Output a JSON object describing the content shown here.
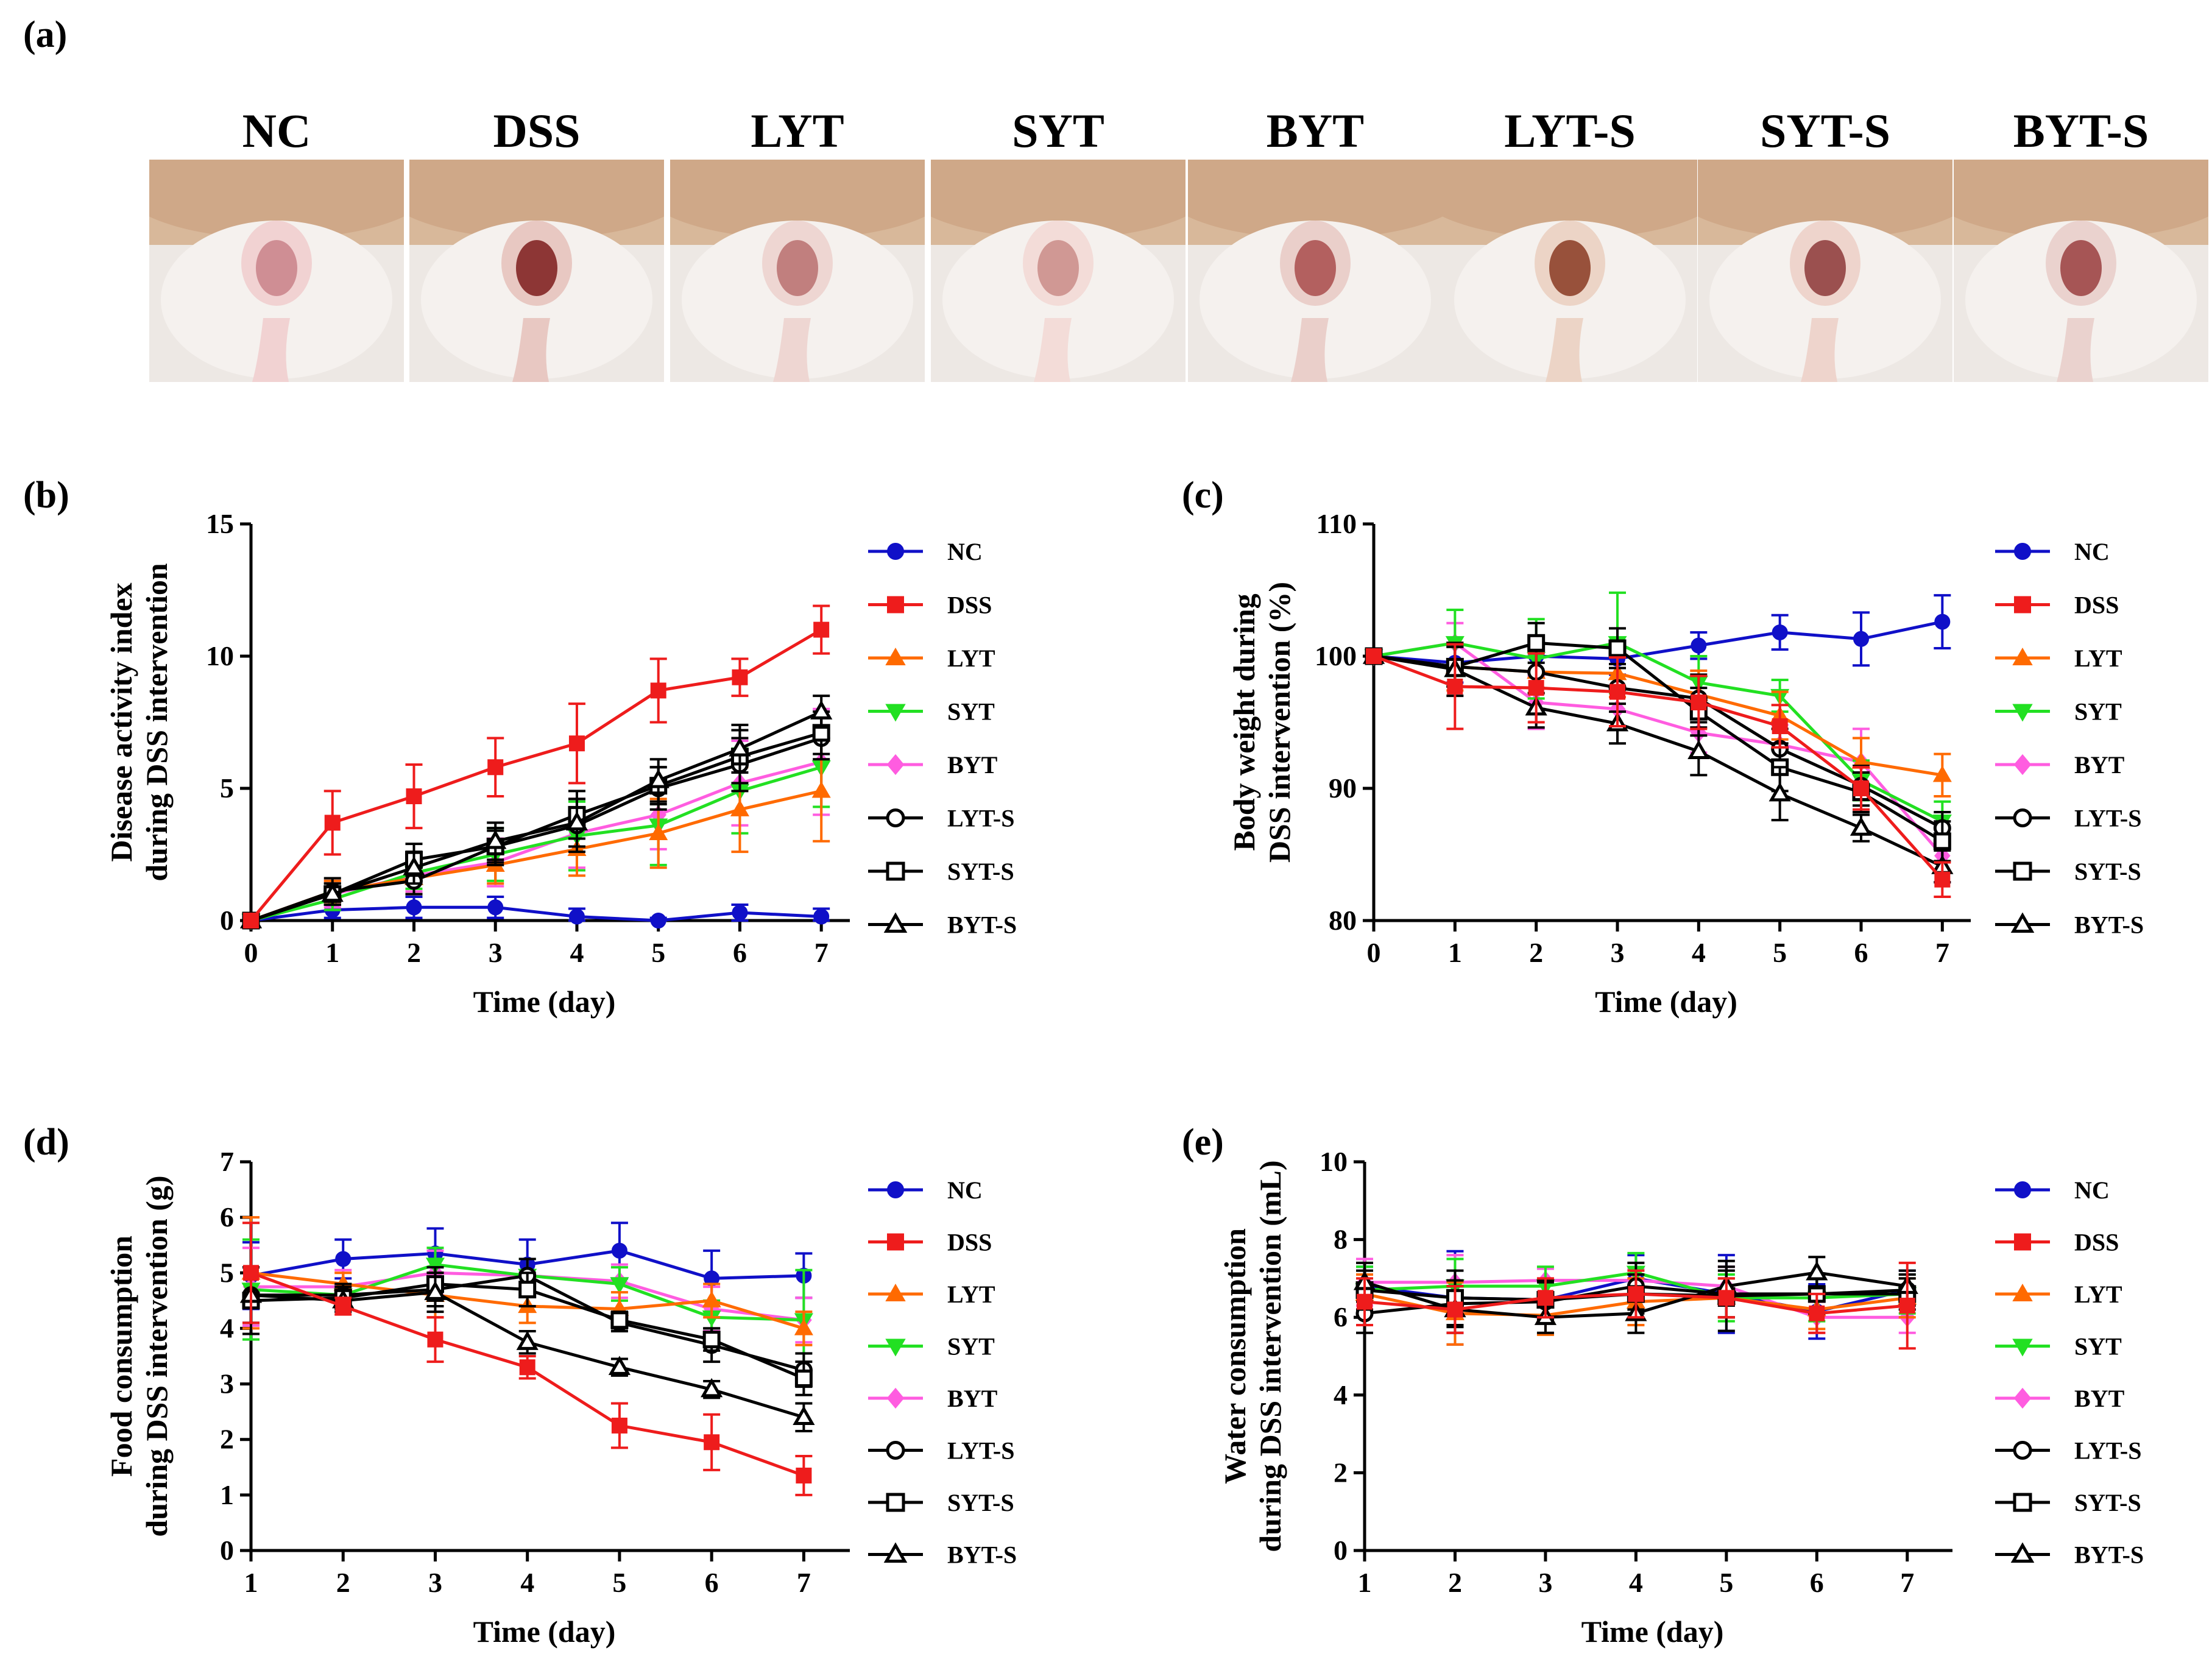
{
  "panels": {
    "a": "(a)",
    "b": "(b)",
    "c": "(c)",
    "d": "(d)",
    "e": "(e)"
  },
  "photos": [
    {
      "label": "NC",
      "tone": "#f1d2d2",
      "lesion": "#c9828a"
    },
    {
      "label": "DSS",
      "tone": "#e8c8c2",
      "lesion": "#7c1c1c"
    },
    {
      "label": "LYT",
      "tone": "#eed6d2",
      "lesion": "#b87070"
    },
    {
      "label": "SYT",
      "tone": "#f3dcd8",
      "lesion": "#c98c88"
    },
    {
      "label": "BYT",
      "tone": "#eacfca",
      "lesion": "#a94c4c"
    },
    {
      "label": "LYT-S",
      "tone": "#ecd4c6",
      "lesion": "#8a3a22"
    },
    {
      "label": "SYT-S",
      "tone": "#eed4cc",
      "lesion": "#8c3838"
    },
    {
      "label": "BYT-S",
      "tone": "#ead2ce",
      "lesion": "#9a4040"
    }
  ],
  "legend": [
    {
      "name": "NC",
      "color": "#1010c8",
      "marker": "circle",
      "filled": true
    },
    {
      "name": "DSS",
      "color": "#ee1c1c",
      "marker": "square",
      "filled": true
    },
    {
      "name": "LYT",
      "color": "#ff6a00",
      "marker": "triangle",
      "filled": true
    },
    {
      "name": "SYT",
      "color": "#22e022",
      "marker": "triangle-down",
      "filled": true
    },
    {
      "name": "BYT",
      "color": "#ff5ce0",
      "marker": "diamond",
      "filled": true
    },
    {
      "name": "LYT-S",
      "color": "#000000",
      "marker": "circle",
      "filled": false
    },
    {
      "name": "SYT-S",
      "color": "#000000",
      "marker": "square",
      "filled": false
    },
    {
      "name": "BYT-S",
      "color": "#000000",
      "marker": "triangle",
      "filled": false
    }
  ],
  "chart_data": [
    {
      "id": "b",
      "type": "line",
      "title": "",
      "xlabel": "Time (day)",
      "ylabel": [
        "Disease activity index",
        "during DSS intervention"
      ],
      "x": [
        0,
        1,
        2,
        3,
        4,
        5,
        6,
        7
      ],
      "xticks": [
        "0",
        "1",
        "2",
        "3",
        "4",
        "5",
        "6",
        "7"
      ],
      "xlim": [
        0,
        7.35
      ],
      "ylim": [
        0,
        15
      ],
      "yticks": [
        "0",
        "5",
        "10",
        "15"
      ],
      "ytick_values": [
        0,
        5,
        10,
        15
      ],
      "series": [
        {
          "name": "NC",
          "values": [
            0,
            0.4,
            0.5,
            0.5,
            0.15,
            0,
            0.3,
            0.15
          ],
          "err": [
            0,
            0.3,
            0.4,
            0.4,
            0.3,
            0.1,
            0.3,
            0.3
          ]
        },
        {
          "name": "DSS",
          "values": [
            0,
            3.7,
            4.7,
            5.8,
            6.7,
            8.7,
            9.2,
            11.0
          ],
          "err": [
            0,
            1.2,
            1.2,
            1.1,
            1.5,
            1.2,
            0.7,
            0.9
          ]
        },
        {
          "name": "LYT",
          "values": [
            0,
            1.1,
            1.6,
            2.1,
            2.7,
            3.3,
            4.2,
            4.9
          ],
          "err": [
            0,
            0.4,
            0.6,
            0.7,
            1.0,
            1.3,
            1.6,
            1.9
          ]
        },
        {
          "name": "SYT",
          "values": [
            0,
            0.8,
            1.8,
            2.5,
            3.2,
            3.6,
            4.9,
            5.8
          ],
          "err": [
            0,
            0.4,
            0.6,
            1.0,
            1.3,
            1.5,
            1.6,
            1.5
          ]
        },
        {
          "name": "BYT",
          "values": [
            0,
            1.0,
            1.7,
            2.2,
            3.3,
            4.0,
            5.2,
            6.0
          ],
          "err": [
            0,
            0.5,
            0.6,
            0.9,
            1.3,
            1.3,
            1.6,
            2.0
          ]
        },
        {
          "name": "LYT-S",
          "values": [
            0,
            1.1,
            1.5,
            2.8,
            3.6,
            5.0,
            5.9,
            6.9
          ],
          "err": [
            0,
            0.5,
            0.5,
            0.6,
            1.0,
            0.8,
            1.0,
            0.8
          ]
        },
        {
          "name": "SYT-S",
          "values": [
            0,
            1.0,
            2.3,
            2.8,
            4.0,
            5.1,
            6.2,
            7.1
          ],
          "err": [
            0,
            0.4,
            0.6,
            0.7,
            0.9,
            0.7,
            1.0,
            0.8
          ]
        },
        {
          "name": "BYT-S",
          "values": [
            0,
            1.0,
            2.0,
            3.0,
            3.7,
            5.3,
            6.5,
            7.9
          ],
          "err": [
            0,
            0.4,
            0.6,
            0.7,
            0.9,
            0.8,
            0.9,
            0.6
          ]
        }
      ]
    },
    {
      "id": "c",
      "type": "line",
      "title": "",
      "xlabel": "Time (day)",
      "ylabel": [
        "Body weight during",
        "DSS intervention (%)"
      ],
      "x": [
        0,
        1,
        2,
        3,
        4,
        5,
        6,
        7
      ],
      "xticks": [
        "0",
        "1",
        "2",
        "3",
        "4",
        "5",
        "6",
        "7"
      ],
      "xlim": [
        0,
        7.35
      ],
      "ylim": [
        80,
        110
      ],
      "yticks": [
        "80",
        "90",
        "100",
        "110"
      ],
      "ytick_values": [
        80,
        90,
        100,
        110
      ],
      "series": [
        {
          "name": "NC",
          "values": [
            100,
            99.5,
            100.0,
            99.8,
            100.8,
            101.8,
            101.3,
            102.6
          ],
          "err": [
            0,
            1.5,
            1.5,
            1.2,
            1.0,
            1.3,
            2.0,
            2.0
          ]
        },
        {
          "name": "DSS",
          "values": [
            100,
            97.7,
            97.6,
            97.3,
            96.5,
            94.7,
            90.0,
            83.1
          ],
          "err": [
            0,
            3.2,
            2.6,
            2.6,
            2.0,
            1.6,
            1.6,
            1.3
          ]
        },
        {
          "name": "LYT",
          "values": [
            100,
            99.2,
            98.8,
            98.7,
            97.1,
            95.5,
            92.0,
            91.0
          ],
          "err": [
            0,
            1.8,
            1.6,
            1.8,
            1.8,
            1.8,
            1.8,
            1.6
          ]
        },
        {
          "name": "SYT",
          "values": [
            100,
            101.0,
            99.8,
            101.0,
            98.0,
            97.0,
            90.6,
            87.5
          ],
          "err": [
            0,
            2.5,
            3.0,
            3.8,
            2.0,
            1.2,
            1.5,
            1.5
          ]
        },
        {
          "name": "BYT",
          "values": [
            100,
            101.0,
            96.5,
            96.0,
            94.2,
            93.3,
            92.0,
            84.9
          ],
          "err": [
            0,
            1.5,
            2.0,
            1.5,
            1.5,
            1.5,
            2.5,
            2.0
          ]
        },
        {
          "name": "LYT-S",
          "values": [
            100,
            99.2,
            98.8,
            97.6,
            96.8,
            93.0,
            90.2,
            87.0
          ],
          "err": [
            0,
            1.5,
            1.6,
            1.8,
            1.8,
            1.5,
            1.5,
            1.2
          ]
        },
        {
          "name": "SYT-S",
          "values": [
            100,
            99.2,
            101.0,
            100.6,
            95.8,
            91.6,
            89.7,
            86.0
          ],
          "err": [
            0,
            1.5,
            1.5,
            1.5,
            1.8,
            1.8,
            1.5,
            1.5
          ]
        },
        {
          "name": "BYT-S",
          "values": [
            100,
            99.0,
            96.1,
            94.9,
            92.8,
            89.6,
            87.0,
            84.1
          ],
          "err": [
            0,
            2.0,
            1.5,
            1.5,
            1.8,
            2.0,
            1.0,
            1.2
          ]
        }
      ]
    },
    {
      "id": "d",
      "type": "line",
      "title": "",
      "xlabel": "Time (day)",
      "ylabel": [
        "Food consumption",
        "during DSS intervention (g)"
      ],
      "x": [
        1,
        2,
        3,
        4,
        5,
        6,
        7
      ],
      "xticks": [
        "1",
        "2",
        "3",
        "4",
        "5",
        "6",
        "7"
      ],
      "xlim": [
        1,
        7.5
      ],
      "ylim": [
        0,
        7
      ],
      "yticks": [
        "0",
        "1",
        "2",
        "3",
        "4",
        "5",
        "6",
        "7"
      ],
      "ytick_values": [
        0,
        1,
        2,
        3,
        4,
        5,
        6,
        7
      ],
      "series": [
        {
          "name": "NC",
          "values": [
            4.95,
            5.25,
            5.35,
            5.15,
            5.4,
            4.9,
            4.95
          ],
          "err": [
            0.6,
            0.35,
            0.45,
            0.45,
            0.5,
            0.5,
            0.4
          ]
        },
        {
          "name": "DSS",
          "values": [
            5.0,
            4.4,
            3.8,
            3.3,
            2.25,
            1.95,
            1.35
          ],
          "err": [
            0.9,
            0.15,
            0.4,
            0.2,
            0.4,
            0.5,
            0.35
          ]
        },
        {
          "name": "LYT",
          "values": [
            5.0,
            4.8,
            4.6,
            4.4,
            4.35,
            4.5,
            4.0
          ],
          "err": [
            1.0,
            0.2,
            0.4,
            0.3,
            0.3,
            0.3,
            0.3
          ]
        },
        {
          "name": "SYT",
          "values": [
            4.7,
            4.6,
            5.15,
            4.95,
            4.8,
            4.2,
            4.15
          ],
          "err": [
            0.9,
            0.2,
            0.3,
            0.3,
            0.3,
            0.3,
            0.9
          ]
        },
        {
          "name": "BYT",
          "values": [
            4.75,
            4.75,
            5.0,
            4.95,
            4.85,
            4.35,
            4.15
          ],
          "err": [
            0.7,
            0.3,
            0.4,
            0.3,
            0.3,
            0.4,
            0.4
          ]
        },
        {
          "name": "LYT-S",
          "values": [
            4.6,
            4.6,
            4.7,
            4.95,
            4.1,
            3.7,
            3.25
          ],
          "err": [
            0.5,
            0.2,
            0.3,
            0.3,
            0.15,
            0.3,
            0.3
          ]
        },
        {
          "name": "SYT-S",
          "values": [
            4.5,
            4.55,
            4.8,
            4.7,
            4.15,
            3.8,
            3.1
          ],
          "err": [
            0.6,
            0.2,
            0.3,
            0.3,
            0.15,
            0.2,
            0.3
          ]
        },
        {
          "name": "BYT-S",
          "values": [
            4.6,
            4.5,
            4.65,
            3.75,
            3.3,
            2.9,
            2.4
          ],
          "err": [
            0.5,
            0.2,
            0.35,
            0.2,
            0.15,
            0.15,
            0.25
          ]
        }
      ]
    },
    {
      "id": "e",
      "type": "line",
      "title": "",
      "xlabel": "Time (day)",
      "ylabel": [
        "Water consumption",
        "during DSS intervention (mL)"
      ],
      "x": [
        1,
        2,
        3,
        4,
        5,
        6,
        7
      ],
      "xticks": [
        "1",
        "2",
        "3",
        "4",
        "5",
        "6",
        "7"
      ],
      "xlim": [
        1,
        7.5
      ],
      "ylim": [
        0,
        10
      ],
      "yticks": [
        "0",
        "2",
        "4",
        "6",
        "8",
        "10"
      ],
      "ytick_values": [
        0,
        2,
        4,
        6,
        8,
        10
      ],
      "series": [
        {
          "name": "NC",
          "values": [
            6.8,
            6.5,
            6.45,
            7.0,
            6.6,
            6.15,
            6.7
          ],
          "err": [
            0.5,
            1.2,
            0.5,
            0.6,
            1.0,
            0.7,
            0.5
          ]
        },
        {
          "name": "DSS",
          "values": [
            6.4,
            6.2,
            6.5,
            6.6,
            6.5,
            6.1,
            6.3
          ],
          "err": [
            0.6,
            0.6,
            0.5,
            0.6,
            0.5,
            0.5,
            1.1
          ]
        },
        {
          "name": "LYT",
          "values": [
            6.6,
            6.1,
            6.05,
            6.4,
            6.5,
            6.2,
            6.5
          ],
          "err": [
            0.5,
            0.8,
            0.5,
            0.6,
            0.5,
            0.5,
            0.5
          ]
        },
        {
          "name": "SYT",
          "values": [
            6.7,
            6.8,
            6.8,
            7.15,
            6.5,
            6.5,
            6.6
          ],
          "err": [
            0.6,
            0.7,
            0.5,
            0.5,
            0.6,
            0.6,
            0.5
          ]
        },
        {
          "name": "BYT",
          "values": [
            6.9,
            6.9,
            6.95,
            6.95,
            6.8,
            6.0,
            6.0
          ],
          "err": [
            0.6,
            0.7,
            0.3,
            0.3,
            0.5,
            0.4,
            0.4
          ]
        },
        {
          "name": "LYT-S",
          "values": [
            6.1,
            6.35,
            6.4,
            6.8,
            6.6,
            6.6,
            6.7
          ],
          "err": [
            0.5,
            0.6,
            0.5,
            0.6,
            0.6,
            0.5,
            0.4
          ]
        },
        {
          "name": "SYT-S",
          "values": [
            6.7,
            6.5,
            6.45,
            6.6,
            6.55,
            6.6,
            6.6
          ],
          "err": [
            0.5,
            0.7,
            0.5,
            0.5,
            0.9,
            0.5,
            0.4
          ]
        },
        {
          "name": "BYT-S",
          "values": [
            6.9,
            6.2,
            6.0,
            6.1,
            6.8,
            7.15,
            6.8
          ],
          "err": [
            0.5,
            0.6,
            0.4,
            0.5,
            0.5,
            0.4,
            0.4
          ]
        }
      ]
    }
  ]
}
